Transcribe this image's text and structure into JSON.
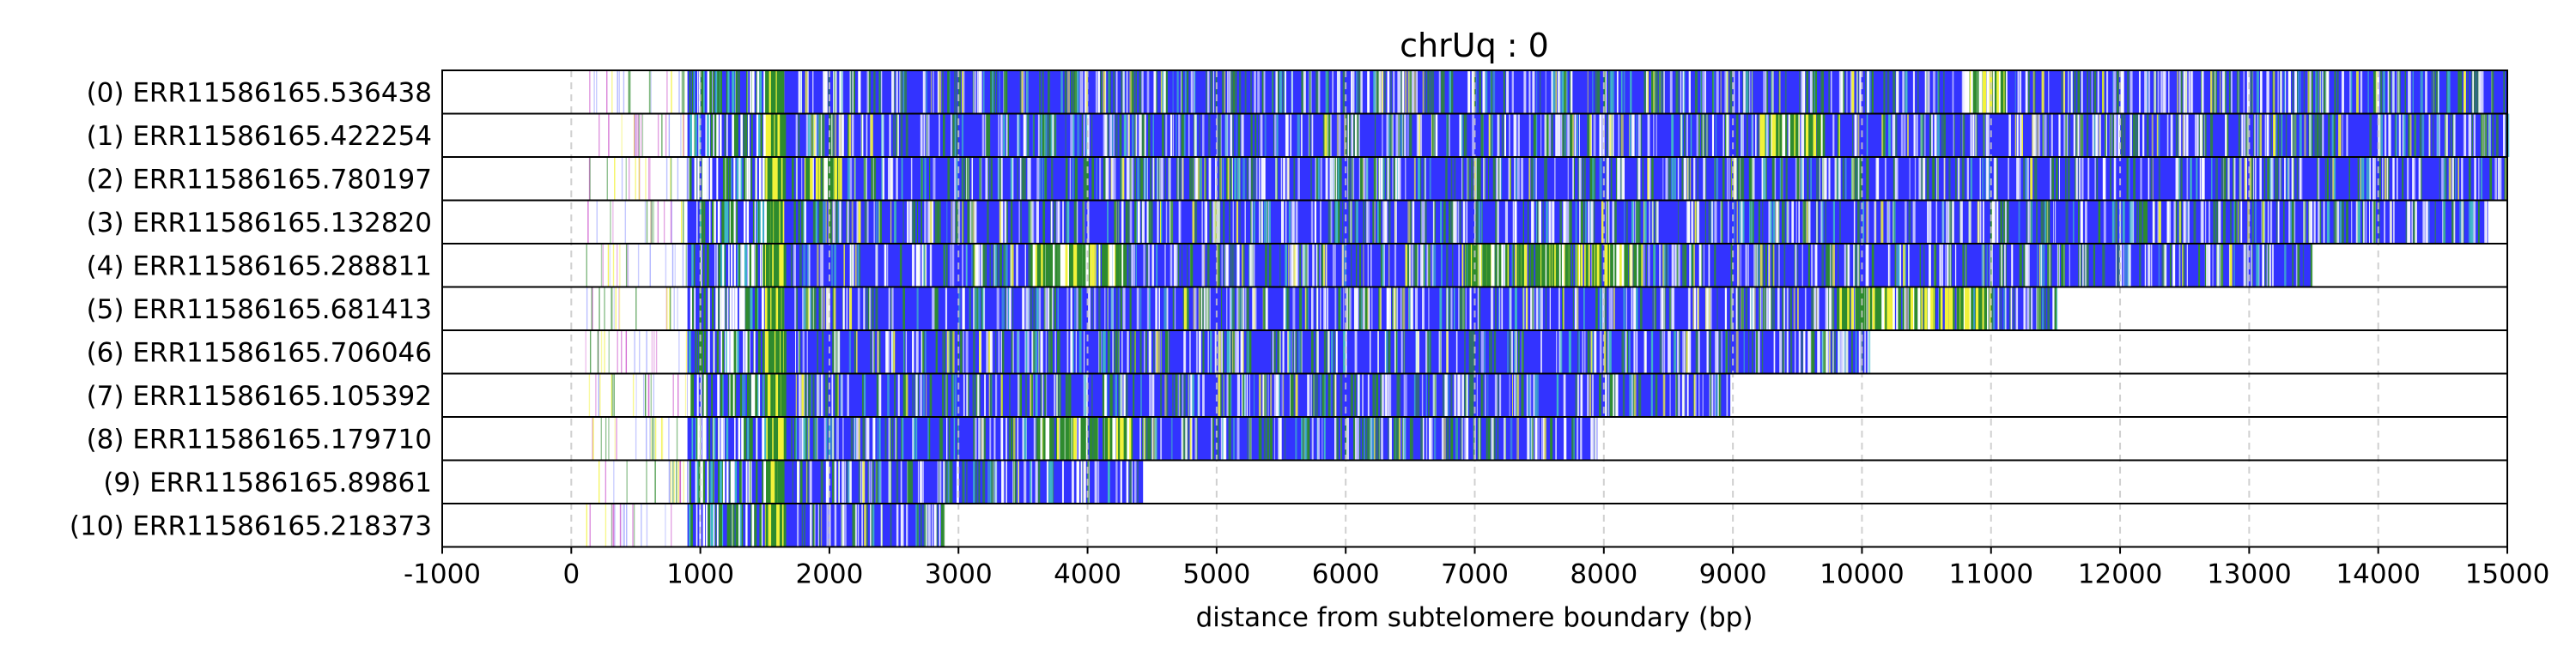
{
  "chart_data": {
    "type": "heatmap",
    "title": "chrUq : 0",
    "xlabel": "distance from subtelomere boundary (bp)",
    "ylabel": "",
    "xlim": [
      -1000,
      15000
    ],
    "xticks": [
      -1000,
      0,
      1000,
      2000,
      3000,
      4000,
      5000,
      6000,
      7000,
      8000,
      9000,
      10000,
      11000,
      12000,
      13000,
      14000,
      15000
    ],
    "xtick_labels": [
      "-1000",
      "0",
      "1000",
      "2000",
      "3000",
      "4000",
      "5000",
      "6000",
      "7000",
      "8000",
      "9000",
      "10000",
      "11000",
      "12000",
      "13000",
      "14000",
      "15000"
    ],
    "grid": "vertical dashed at x ticks",
    "colors": {
      "base": "#3333ff",
      "green": "#2e8b2e",
      "yellow": "#f2f23a",
      "light": "#ffffff",
      "cyan": "#3fb8c8",
      "magenta": "#cc55cc",
      "frame": "#000000",
      "grid": "#c8c8c8"
    },
    "rows": [
      {
        "label": "(0) ERR11586165.536438",
        "end": 15000
      },
      {
        "label": "(1) ERR11586165.422254",
        "end": 15000
      },
      {
        "label": "(2) ERR11586165.780197",
        "end": 15000
      },
      {
        "label": "(3) ERR11586165.132820",
        "end": 14850
      },
      {
        "label": "(4) ERR11586165.288811",
        "end": 13480
      },
      {
        "label": "(5) ERR11586165.681413",
        "end": 11500
      },
      {
        "label": "(6) ERR11586165.706046",
        "end": 10050
      },
      {
        "label": "(7) ERR11586165.105392",
        "end": 8980
      },
      {
        "label": "(8) ERR11586165.179710",
        "end": 7950
      },
      {
        "label": "(9) ERR11586165.89861",
        "end": 4430
      },
      {
        "label": "(10) ERR11586165.218373",
        "end": 2880
      }
    ],
    "dense_start": 900,
    "yellow_band": [
      1500,
      1650
    ],
    "green_regions": [
      {
        "row": 4,
        "from": 3550,
        "to": 4300
      },
      {
        "row": 4,
        "from": 6900,
        "to": 8300
      },
      {
        "row": 8,
        "from": 3600,
        "to": 4350
      },
      {
        "row": 0,
        "from": 10800,
        "to": 11100
      },
      {
        "row": 1,
        "from": 9200,
        "to": 9700
      },
      {
        "row": 5,
        "from": 9800,
        "to": 11000
      },
      {
        "row": 2,
        "from": 1800,
        "to": 2100
      }
    ]
  }
}
